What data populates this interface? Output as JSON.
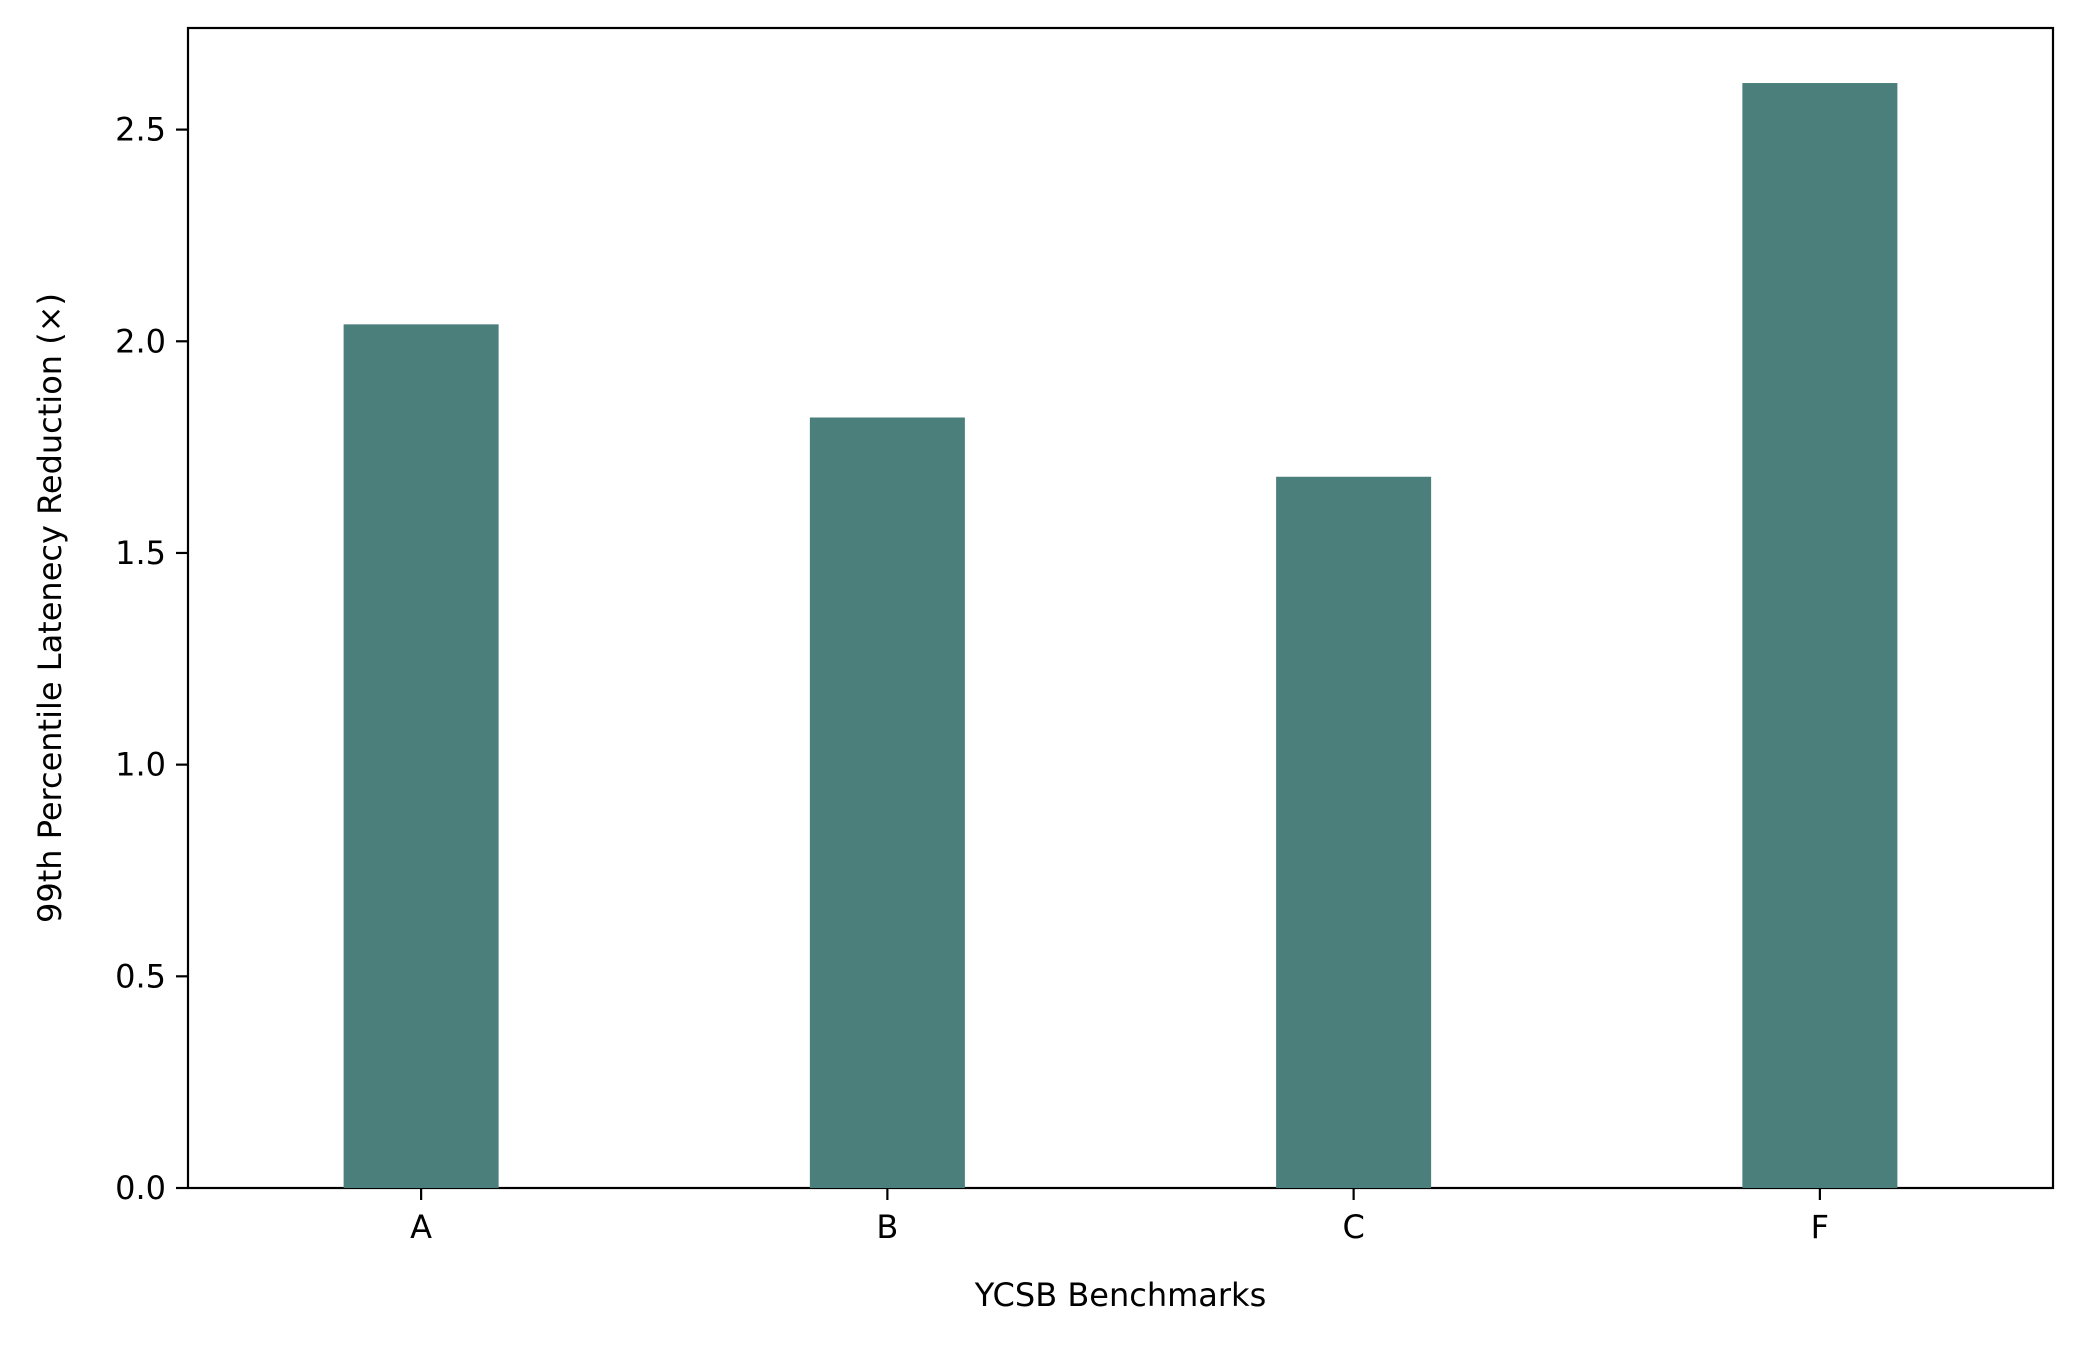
{
  "chart_data": {
    "type": "bar",
    "title": "",
    "xlabel": "YCSB Benchmarks",
    "ylabel": "99th Percentile Latenecy Reduction (×)",
    "categories": [
      "A",
      "B",
      "C",
      "F"
    ],
    "values": [
      2.04,
      1.82,
      1.68,
      2.61
    ],
    "ylim": [
      0,
      2.74
    ],
    "yticks": [
      0.0,
      0.5,
      1.0,
      1.5,
      2.0,
      2.5
    ],
    "ytick_labels": [
      "0.0",
      "0.5",
      "1.0",
      "1.5",
      "2.0",
      "2.5"
    ],
    "bar_color": "#4a7f7c",
    "grid": false,
    "legend": "none"
  }
}
